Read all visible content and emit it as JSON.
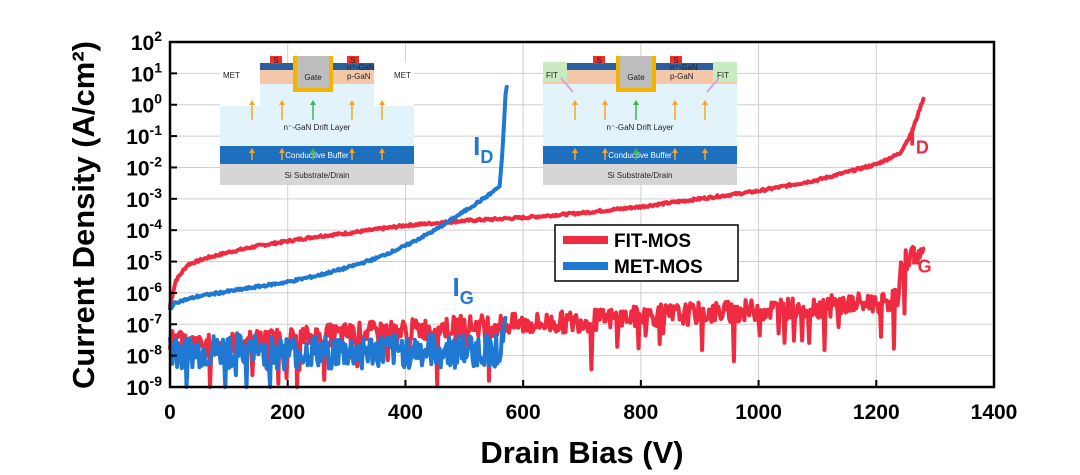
{
  "chart_data": {
    "type": "line",
    "title": "",
    "xlabel": "Drain Bias (V)",
    "ylabel": "Current Density (A/cm²)",
    "xlim": [
      0,
      1400
    ],
    "ylim_log10": [
      -9,
      2
    ],
    "yscale": "log",
    "xticks": [
      "0",
      "200",
      "400",
      "600",
      "800",
      "1000",
      "1200",
      "1400"
    ],
    "yticks": [
      {
        "base": "10",
        "exp": "2"
      },
      {
        "base": "10",
        "exp": "1"
      },
      {
        "base": "10",
        "exp": "0"
      },
      {
        "base": "10",
        "exp": "-1"
      },
      {
        "base": "10",
        "exp": "-2"
      },
      {
        "base": "10",
        "exp": "-3"
      },
      {
        "base": "10",
        "exp": "-4"
      },
      {
        "base": "10",
        "exp": "-5"
      },
      {
        "base": "10",
        "exp": "-6"
      },
      {
        "base": "10",
        "exp": "-7"
      },
      {
        "base": "10",
        "exp": "-8"
      },
      {
        "base": "10",
        "exp": "-9"
      }
    ],
    "grid": true,
    "legend_position": "center",
    "series": [
      {
        "name": "FIT-MOS",
        "kind": "ID",
        "color": "#ee2b40",
        "x": [
          0,
          10,
          30,
          60,
          100,
          150,
          200,
          250,
          300,
          400,
          500,
          600,
          700,
          800,
          900,
          1000,
          1100,
          1200,
          1240,
          1260,
          1280
        ],
        "log10J": [
          -6.4,
          -5.6,
          -5.1,
          -4.9,
          -4.7,
          -4.5,
          -4.35,
          -4.2,
          -4.1,
          -3.85,
          -3.7,
          -3.6,
          -3.45,
          -3.25,
          -3.0,
          -2.75,
          -2.4,
          -1.9,
          -1.55,
          -0.9,
          0.2
        ]
      },
      {
        "name": "FIT-MOS",
        "kind": "IG",
        "color": "#ee2b40",
        "x": [
          0,
          50,
          100,
          200,
          300,
          400,
          500,
          600,
          700,
          800,
          900,
          1000,
          1100,
          1200,
          1235,
          1245,
          1260,
          1280
        ],
        "log10J": [
          -7.5,
          -7.7,
          -7.6,
          -7.45,
          -7.3,
          -7.2,
          -7.05,
          -7.0,
          -6.9,
          -6.75,
          -6.65,
          -6.55,
          -6.45,
          -6.3,
          -6.2,
          -5.0,
          -4.8,
          -4.75
        ]
      },
      {
        "name": "MET-MOS",
        "kind": "ID",
        "color": "#1f78d2",
        "x": [
          0,
          10,
          50,
          100,
          150,
          200,
          250,
          300,
          350,
          400,
          450,
          500,
          540,
          560,
          565,
          570,
          572
        ],
        "log10J": [
          -6.5,
          -6.3,
          -6.1,
          -5.95,
          -5.8,
          -5.65,
          -5.45,
          -5.2,
          -4.9,
          -4.5,
          -4.0,
          -3.4,
          -2.9,
          -2.6,
          -1.5,
          0.3,
          0.6
        ]
      },
      {
        "name": "MET-MOS",
        "kind": "IG",
        "color": "#1f78d2",
        "x": [
          0,
          50,
          100,
          200,
          300,
          400,
          500,
          560,
          570
        ],
        "log10J": [
          -7.9,
          -7.9,
          -7.85,
          -7.9,
          -7.9,
          -7.85,
          -7.85,
          -7.8,
          -7.2
        ]
      }
    ],
    "annotations": [
      {
        "text": "I",
        "sub": "D",
        "color": "#1f78d2",
        "at_x": 515,
        "at_log10J": -1.6
      },
      {
        "text": "I",
        "sub": "D",
        "color": "#ee2b40",
        "at_x": 1255,
        "at_log10J": -1.3
      },
      {
        "text": "I",
        "sub": "G",
        "color": "#1f78d2",
        "at_x": 480,
        "at_log10J": -6.1
      },
      {
        "text": "I",
        "sub": "G",
        "color": "#ee2b40",
        "at_x": 1258,
        "at_log10J": -5.1
      }
    ],
    "insets": [
      {
        "id": "met",
        "side_label": "MET",
        "gate": "Gate",
        "source": "S",
        "n_label": "n⁺-GaN",
        "p_label": "p-GaN",
        "drift": "n⁻-GaN Drift Layer",
        "buffer": "Conductive Buffer",
        "substrate": "Si Substrate/Drain"
      },
      {
        "id": "fit",
        "side_label": "FIT",
        "gate": "Gate",
        "source": "S",
        "n_label": "n⁺-GaN",
        "p_label": "p-GaN",
        "drift": "n⁻-GaN Drift Layer",
        "buffer": "Conductive Buffer",
        "substrate": "Si Substrate/Drain"
      }
    ]
  }
}
